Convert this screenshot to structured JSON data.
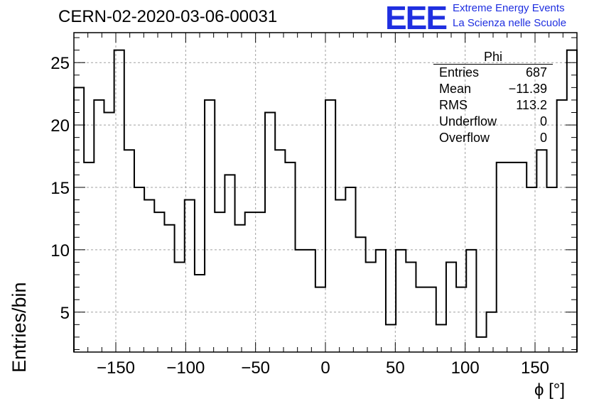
{
  "header": {
    "run_title": "CERN-02-2020-03-06-00031",
    "logo": "EEE",
    "org_line1": "Extreme Energy Events",
    "org_line2": "La Scienza nelle Scuole",
    "brand_color": "#1f2fe0"
  },
  "stats_box": {
    "name": "Phi",
    "rows": [
      {
        "label": "Entries",
        "value": "687"
      },
      {
        "label": "Mean",
        "value": "−11.39"
      },
      {
        "label": "RMS",
        "value": "113.2"
      },
      {
        "label": "Underflow",
        "value": "0"
      },
      {
        "label": "Overflow",
        "value": "0"
      }
    ]
  },
  "chart_data": {
    "type": "histogram",
    "title": "CERN-02-2020-03-06-00031",
    "xlabel": "ϕ [°]",
    "ylabel": "Entries/bin",
    "xlim": [
      -180,
      180
    ],
    "ylim": [
      1.8,
      27.4
    ],
    "bin_edges_start": -180,
    "bin_width": 7.2,
    "x_ticks": [
      -150,
      -100,
      -50,
      0,
      50,
      100,
      150
    ],
    "x_tick_labels": [
      "−150",
      "−100",
      "−50",
      "0",
      "50",
      "100",
      "150"
    ],
    "y_ticks": [
      5,
      10,
      15,
      20,
      25
    ],
    "y_tick_labels": [
      "5",
      "10",
      "15",
      "20",
      "25"
    ],
    "grid": true,
    "values": [
      23,
      17,
      22,
      21,
      26,
      18,
      15,
      14,
      13,
      12,
      9,
      14,
      8,
      22,
      13,
      16,
      12,
      13,
      13,
      21,
      18,
      17,
      10,
      10,
      7,
      22,
      14,
      15,
      11,
      9,
      10,
      4,
      10,
      9,
      7,
      7,
      4,
      9,
      7,
      10,
      3,
      5,
      17,
      17,
      17,
      15,
      18,
      15,
      22,
      26
    ]
  }
}
